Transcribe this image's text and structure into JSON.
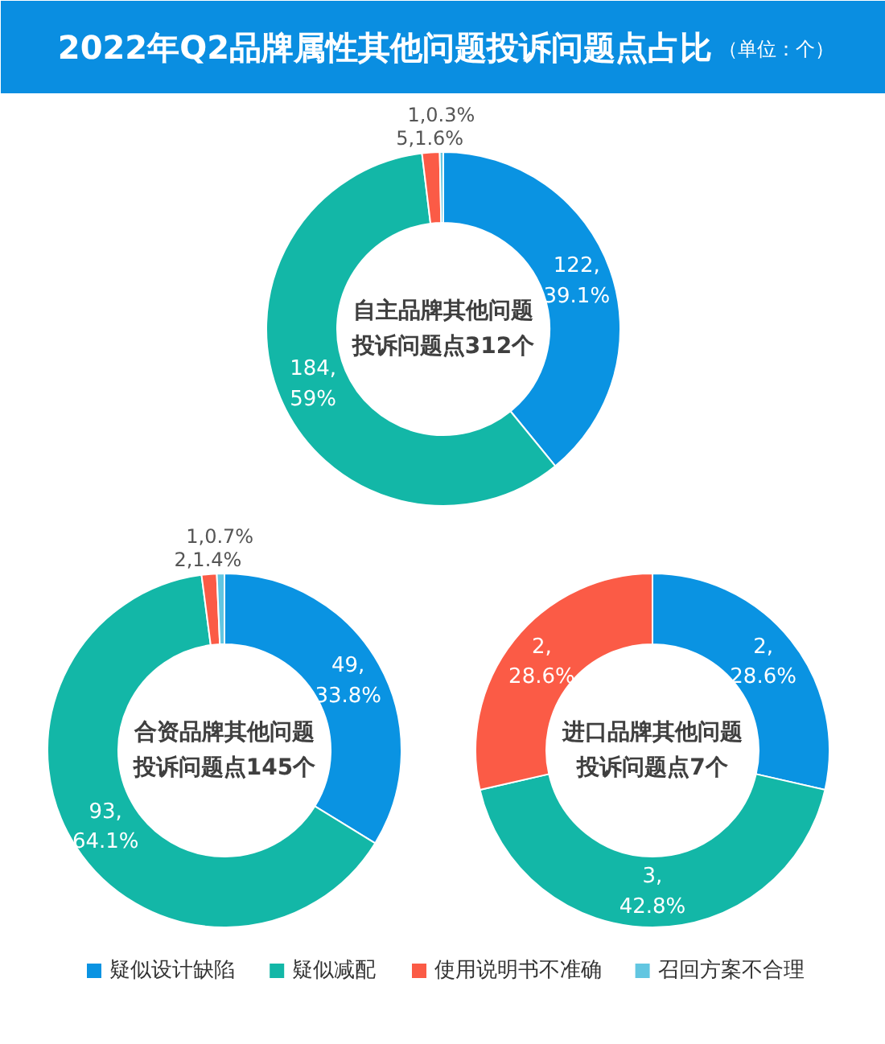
{
  "chart_data": [
    {
      "type": "donut",
      "title": "2022年Q2品牌属性其他问题投诉问题点占比",
      "subtitle": "（单位：个）",
      "annotations": [
        "自主品牌其他问题",
        "投诉问题点312个"
      ],
      "categories": [
        "疑似设计缺陷",
        "疑似减配",
        "使用说明书不准确",
        "召回方案不合理"
      ],
      "values": [
        122,
        184,
        5,
        1
      ],
      "colors": [
        "#0a93e2",
        "#13b7a7",
        "#fb5b46",
        "#62c6e1"
      ],
      "value_labels": [
        "122,\n39.1%",
        "184,\n59%",
        "5,1.6%",
        "1,0.3%"
      ],
      "legend": "bottom"
    },
    {
      "type": "donut",
      "annotations": [
        "合资品牌其他问题",
        "投诉问题点145个"
      ],
      "categories": [
        null,
        null,
        null,
        null
      ],
      "values": [
        49,
        93,
        2,
        1
      ],
      "colors": [
        "#0a93e2",
        "#13b7a7",
        "#fb5b46",
        "#62c6e1"
      ],
      "value_labels": [
        "49,\n33.8%",
        "93,\n64.1%",
        "2,1.4%",
        "1,0.7%"
      ]
    },
    {
      "type": "donut",
      "annotations": [
        "进口品牌其他问题",
        "投诉问题点7个"
      ],
      "categories": [
        null,
        null,
        null
      ],
      "values": [
        2,
        3,
        2
      ],
      "colors": [
        "#0a93e2",
        "#13b7a7",
        "#fb5b46"
      ],
      "value_labels": [
        "2,\n28.6%",
        "3,\n42.8%",
        "2,\n28.6%"
      ]
    }
  ]
}
